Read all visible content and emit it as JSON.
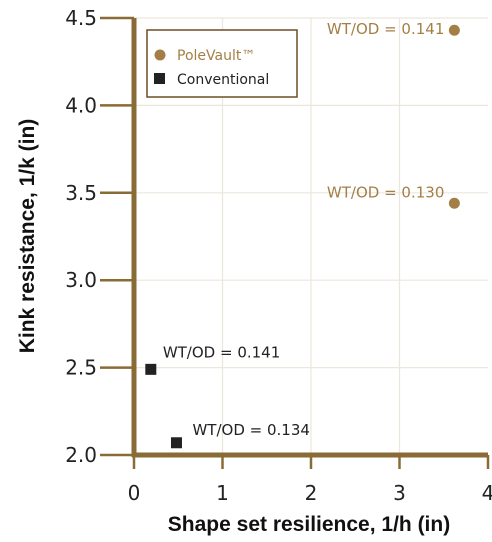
{
  "chart_data": {
    "type": "scatter",
    "xlabel": "Shape set resilience, 1/h (in)",
    "ylabel": "Kink resistance, 1/k (in)",
    "xlim": [
      0,
      4
    ],
    "ylim": [
      2.0,
      4.5
    ],
    "x_ticks": [
      "0",
      "1",
      "2",
      "3",
      "4"
    ],
    "y_ticks": [
      "2.0",
      "2.5",
      "3.0",
      "3.5",
      "4.0",
      "4.5"
    ],
    "grid": true,
    "legend_position": "top-left",
    "series": [
      {
        "name": "PoleVault™",
        "marker": "circle",
        "color": "#a47f45",
        "points": [
          {
            "x": 3.62,
            "y": 4.43,
            "label": "WT/OD = 0.141"
          },
          {
            "x": 3.62,
            "y": 3.44,
            "label": "WT/OD = 0.130"
          }
        ]
      },
      {
        "name": "Conventional",
        "marker": "square",
        "color": "#222222",
        "points": [
          {
            "x": 0.19,
            "y": 2.49,
            "label": "WT/OD = 0.141"
          },
          {
            "x": 0.48,
            "y": 2.07,
            "label": "WT/OD = 0.134"
          }
        ]
      }
    ],
    "colors": {
      "axis": "#8a6a35",
      "grid": "#ece7dd",
      "frame": "#6b4f24"
    }
  }
}
